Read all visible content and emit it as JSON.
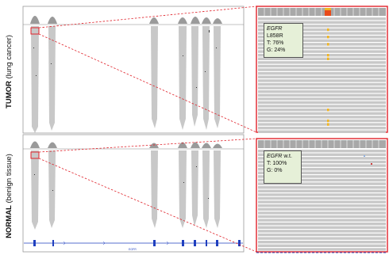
{
  "panels": {
    "tumor": {
      "label_bold": "TUMOR",
      "label_rest": "(lung cancer)"
    },
    "normal": {
      "label_bold": "NORMAL",
      "label_rest": "(benign tissue)"
    }
  },
  "zoom_boxes": {
    "tumor": {
      "gene": "EGFR",
      "mutation": "L858R",
      "t_line": "T: 76%",
      "g_line": "G: 24%"
    },
    "normal": {
      "gene": "EGFR",
      "mutation": "w.t.",
      "t_line": "T: 100%",
      "g_line": "G: 0%"
    }
  },
  "allele_fractions": {
    "tumor": {
      "T": 0.76,
      "G": 0.24
    },
    "normal": {
      "T": 1.0,
      "G": 0.0
    }
  },
  "colors": {
    "highlight": "#e0222a",
    "zoom_line": "#e0222a",
    "read": "#c8c8c8",
    "coverage": "#9a9a9a",
    "info_bg": "#e6f0d8",
    "variant_T": "#e84a1a",
    "variant_G": "#f2b520",
    "gene_track": "#1f3fbf"
  },
  "ruler": {
    "label": "EGFR"
  }
}
